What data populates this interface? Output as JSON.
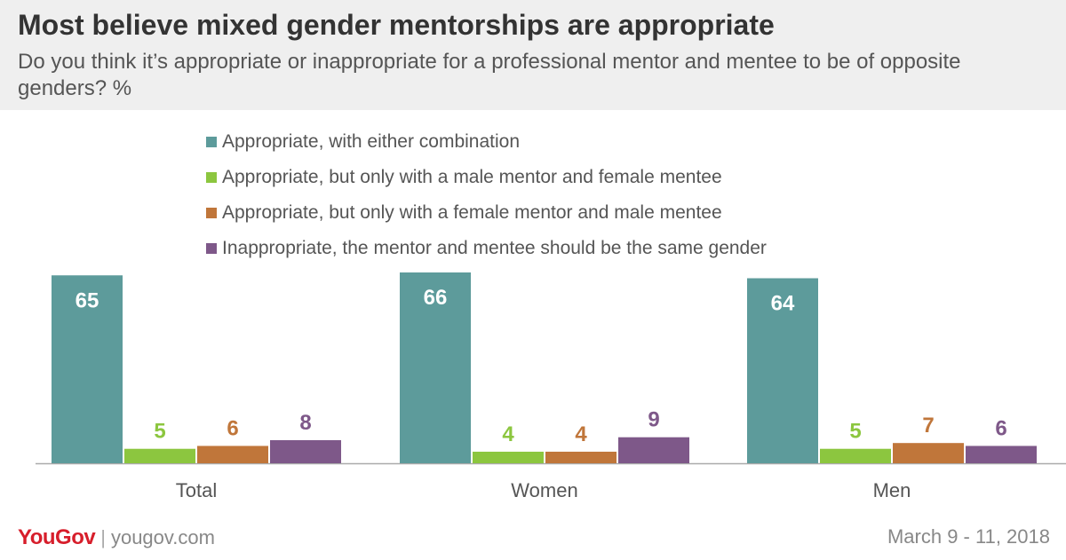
{
  "chart_data": {
    "type": "bar",
    "title": "Most believe mixed gender mentorships are appropriate",
    "subtitle": "Do you think it’s appropriate or inappropriate for a professional mentor and mentee to be of opposite genders? %",
    "categories": [
      "Total",
      "Women",
      "Men"
    ],
    "series": [
      {
        "name": "Appropriate, with either combination",
        "color": "#5d9b9b",
        "values": [
          65,
          66,
          64
        ]
      },
      {
        "name": "Appropriate, but only with a male mentor and female mentee",
        "color": "#8cc63f",
        "values": [
          5,
          4,
          5
        ]
      },
      {
        "name": "Appropriate, but only with a female mentor and male mentee",
        "color": "#c0763a",
        "values": [
          6,
          4,
          7
        ]
      },
      {
        "name": "Inappropriate, the mentor and mentee should be the same gender",
        "color": "#7e5889",
        "values": [
          8,
          9,
          6
        ]
      }
    ],
    "ylim": [
      0,
      66
    ],
    "grid": false,
    "legend_position": "top"
  },
  "footer": {
    "brand": "YouGov",
    "site": "yougov.com",
    "date": "March 9 - 11, 2018"
  },
  "colors": {
    "brand": "#d71e2b",
    "header_bg": "#efefef"
  }
}
